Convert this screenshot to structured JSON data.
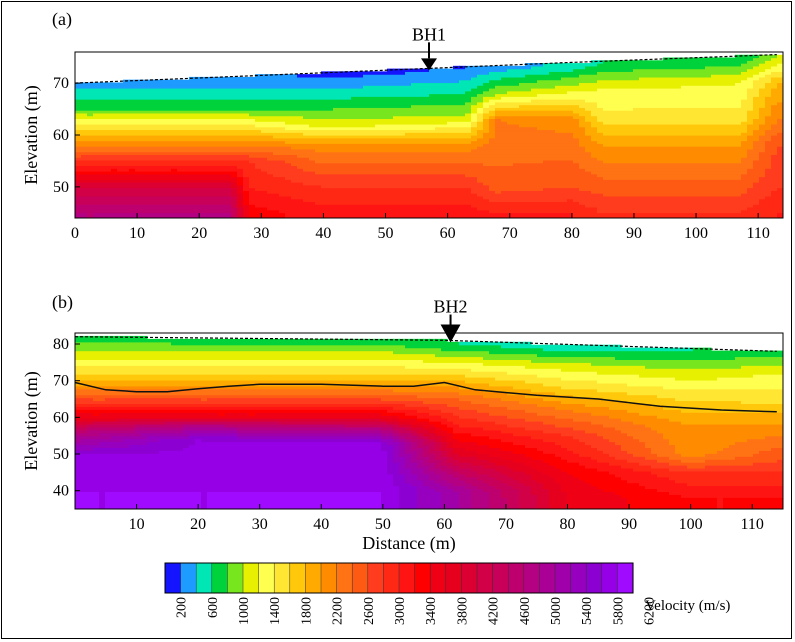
{
  "chart_data": [
    {
      "type": "heatmap",
      "panel_label": "(a)",
      "borehole": "BH1",
      "borehole_x": 57,
      "xlabel": "",
      "ylabel": "Elevation (m)",
      "xlim": [
        0,
        114
      ],
      "ylim": [
        44,
        76
      ],
      "x_ticks": [
        0,
        10,
        20,
        30,
        40,
        50,
        60,
        70,
        80,
        90,
        100,
        110
      ],
      "x_tick_labels": [
        "0",
        "10",
        "20",
        "30",
        "40",
        "50",
        "60",
        "70",
        "80",
        "90",
        "100",
        "110"
      ],
      "y_ticks": [
        50,
        60,
        70
      ],
      "y_tick_labels": [
        "50",
        "60",
        "70"
      ],
      "surface": [
        [
          0,
          70
        ],
        [
          40,
          72
        ],
        [
          80,
          74
        ],
        [
          113,
          75.5
        ]
      ],
      "velocity_profile": [
        {
          "x": 0,
          "v": [
            [
              70,
              500
            ],
            [
              65,
              1000
            ],
            [
              60,
              2000
            ],
            [
              55,
              3000
            ],
            [
              50,
              4200
            ],
            [
              45,
              4800
            ]
          ]
        },
        {
          "x": 25,
          "v": [
            [
              70,
              500
            ],
            [
              65,
              1000
            ],
            [
              60,
              2000
            ],
            [
              55,
              3000
            ],
            [
              50,
              4200
            ],
            [
              45,
              4800
            ]
          ]
        },
        {
          "x": 28,
          "v": [
            [
              70,
              500
            ],
            [
              65,
              1000
            ],
            [
              60,
              2000
            ],
            [
              55,
              3000
            ],
            [
              50,
              3200
            ],
            [
              45,
              3500
            ]
          ]
        },
        {
          "x": 40,
          "v": [
            [
              72,
              300
            ],
            [
              67,
              800
            ],
            [
              62,
              1300
            ],
            [
              58,
              2300
            ],
            [
              50,
              3000
            ],
            [
              45,
              3300
            ]
          ]
        },
        {
          "x": 63,
          "v": [
            [
              73,
              400
            ],
            [
              68,
              800
            ],
            [
              63,
              1300
            ],
            [
              58,
              2300
            ],
            [
              50,
              3000
            ],
            [
              45,
              3300
            ]
          ]
        },
        {
          "x": 68,
          "v": [
            [
              73,
              500
            ],
            [
              68,
              1200
            ],
            [
              63,
              2400
            ],
            [
              58,
              2500
            ],
            [
              50,
              2700
            ],
            [
              45,
              3200
            ]
          ]
        },
        {
          "x": 80,
          "v": [
            [
              74,
              600
            ],
            [
              69,
              1300
            ],
            [
              63,
              2300
            ],
            [
              58,
              2500
            ],
            [
              50,
              2800
            ],
            [
              45,
              3200
            ]
          ]
        },
        {
          "x": 85,
          "v": [
            [
              74,
              800
            ],
            [
              69,
              1400
            ],
            [
              63,
              1700
            ],
            [
              58,
              2200
            ],
            [
              50,
              2700
            ],
            [
              45,
              3000
            ]
          ]
        },
        {
          "x": 107,
          "v": [
            [
              75,
              800
            ],
            [
              70,
              1400
            ],
            [
              63,
              1700
            ],
            [
              58,
              2200
            ],
            [
              50,
              2700
            ],
            [
              45,
              3000
            ]
          ]
        },
        {
          "x": 113,
          "v": [
            [
              75,
              1200
            ],
            [
              70,
              2000
            ],
            [
              63,
              2400
            ],
            [
              58,
              2800
            ],
            [
              50,
              3000
            ],
            [
              45,
              3200
            ]
          ]
        }
      ]
    },
    {
      "type": "heatmap",
      "panel_label": "(b)",
      "borehole": "BH2",
      "borehole_x": 61,
      "xlabel": "Distance (m)",
      "ylabel": "Elevation (m)",
      "xlim": [
        0,
        115
      ],
      "ylim": [
        35,
        83
      ],
      "x_ticks": [
        10,
        20,
        30,
        40,
        50,
        60,
        70,
        80,
        90,
        100,
        110
      ],
      "x_tick_labels": [
        "10",
        "20",
        "30",
        "40",
        "50",
        "60",
        "70",
        "80",
        "90",
        "100",
        "110"
      ],
      "y_ticks": [
        40,
        50,
        60,
        70,
        80
      ],
      "y_tick_labels": [
        "40",
        "50",
        "60",
        "70",
        "80"
      ],
      "surface": [
        [
          0,
          82
        ],
        [
          60,
          81
        ],
        [
          114,
          78
        ]
      ],
      "refractor_line": [
        [
          0,
          69.5
        ],
        [
          5,
          67.5
        ],
        [
          10,
          67
        ],
        [
          15,
          67
        ],
        [
          20,
          67.8
        ],
        [
          25,
          68.5
        ],
        [
          30,
          69
        ],
        [
          40,
          69
        ],
        [
          50,
          68.5
        ],
        [
          55,
          68.5
        ],
        [
          60,
          69.5
        ],
        [
          65,
          67.5
        ],
        [
          75,
          66
        ],
        [
          85,
          65
        ],
        [
          95,
          63
        ],
        [
          105,
          62
        ],
        [
          114,
          61.5
        ]
      ],
      "velocity_profile": [
        {
          "x": 0,
          "v": [
            [
              81,
              1000
            ],
            [
              76,
              1400
            ],
            [
              70,
              2000
            ],
            [
              65,
              2800
            ],
            [
              60,
              3800
            ],
            [
              56,
              4800
            ],
            [
              50,
              5800
            ],
            [
              40,
              6000
            ]
          ]
        },
        {
          "x": 20,
          "v": [
            [
              81,
              900
            ],
            [
              76,
              1400
            ],
            [
              70,
              2000
            ],
            [
              65,
              2800
            ],
            [
              60,
              3800
            ],
            [
              58,
              4800
            ],
            [
              54,
              5800
            ],
            [
              40,
              6000
            ]
          ]
        },
        {
          "x": 50,
          "v": [
            [
              81,
              900
            ],
            [
              76,
              1400
            ],
            [
              70,
              2000
            ],
            [
              65,
              2800
            ],
            [
              60,
              3800
            ],
            [
              57,
              4800
            ],
            [
              53,
              5800
            ],
            [
              40,
              6000
            ]
          ]
        },
        {
          "x": 62,
          "v": [
            [
              80,
              800
            ],
            [
              75,
              1400
            ],
            [
              70,
              2000
            ],
            [
              65,
              2600
            ],
            [
              58,
              3200
            ],
            [
              50,
              4000
            ],
            [
              40,
              5200
            ]
          ]
        },
        {
          "x": 80,
          "v": [
            [
              79,
              700
            ],
            [
              74,
              1300
            ],
            [
              68,
              1800
            ],
            [
              62,
              2400
            ],
            [
              55,
              3000
            ],
            [
              45,
              3600
            ],
            [
              38,
              3800
            ]
          ]
        },
        {
          "x": 100,
          "v": [
            [
              78,
              800
            ],
            [
              73,
              1200
            ],
            [
              66,
              1700
            ],
            [
              58,
              2200
            ],
            [
              50,
              2300
            ],
            [
              45,
              3000
            ],
            [
              38,
              3400
            ]
          ]
        },
        {
          "x": 114,
          "v": [
            [
              78,
              900
            ],
            [
              72,
              1400
            ],
            [
              64,
              1800
            ],
            [
              55,
              2400
            ],
            [
              45,
              3000
            ],
            [
              38,
              3400
            ]
          ]
        }
      ]
    }
  ],
  "colorbar": {
    "label": "Velocity (m/s)",
    "tick_labels": [
      "200",
      "600",
      "1000",
      "1400",
      "1800",
      "2200",
      "2600",
      "3000",
      "3400",
      "3800",
      "4200",
      "4600",
      "5000",
      "5400",
      "5800",
      "6200"
    ],
    "colors": [
      "#1414ff",
      "#1e9bff",
      "#00e6b4",
      "#00d23c",
      "#78e61e",
      "#e6f000",
      "#ffff50",
      "#ffe632",
      "#ffc80a",
      "#ffaa00",
      "#ff8c00",
      "#ff7314",
      "#ff5a14",
      "#ff3c1e",
      "#ff2814",
      "#ff1414",
      "#ff0000",
      "#f00014",
      "#e6001e",
      "#dc0032",
      "#d20046",
      "#c8005a",
      "#be006e",
      "#b40082",
      "#aa0096",
      "#a000aa",
      "#9600be",
      "#8c00d2",
      "#9600e6",
      "#a00aff"
    ]
  }
}
